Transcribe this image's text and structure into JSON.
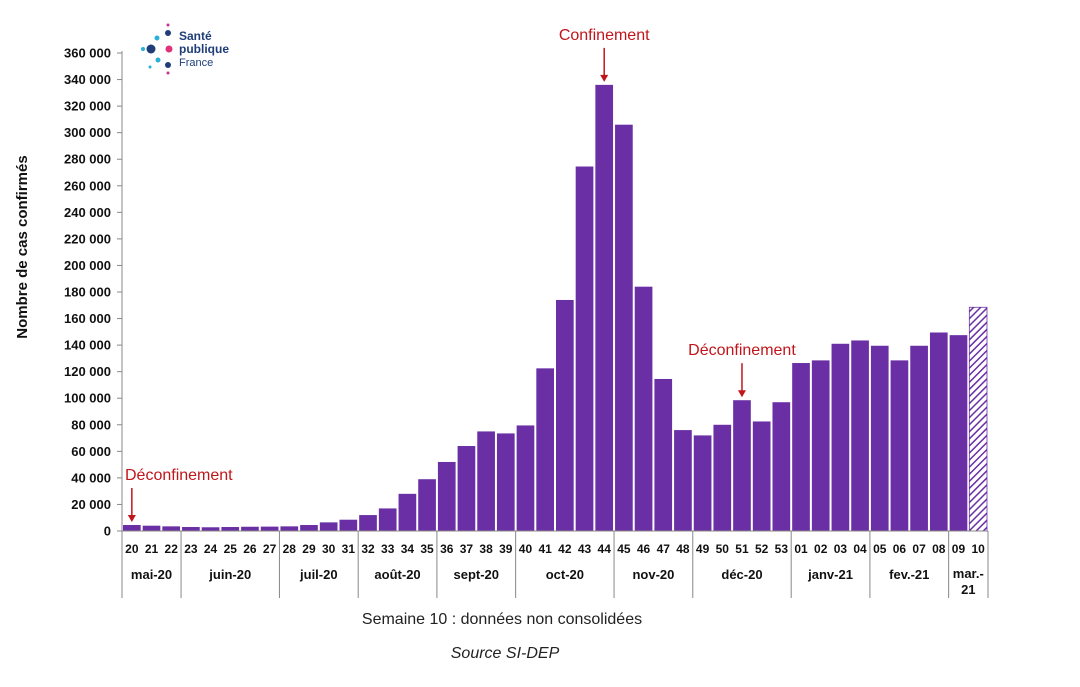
{
  "logo": {
    "line1": "Santé",
    "line2": "publique",
    "line3": "France"
  },
  "chart_data": {
    "type": "bar",
    "ylabel": "Nombre de cas confirmés",
    "ylim": [
      0,
      360000
    ],
    "yticks": [
      "0",
      "20 000",
      "40 000",
      "60 000",
      "80 000",
      "100 000",
      "120 000",
      "140 000",
      "160 000",
      "180 000",
      "200 000",
      "220 000",
      "240 000",
      "260 000",
      "280 000",
      "300 000",
      "320 000",
      "340 000",
      "360 000"
    ],
    "categories": [
      "20",
      "21",
      "22",
      "23",
      "24",
      "25",
      "26",
      "27",
      "28",
      "29",
      "30",
      "31",
      "32",
      "33",
      "34",
      "35",
      "36",
      "37",
      "38",
      "39",
      "40",
      "41",
      "42",
      "43",
      "44",
      "45",
      "46",
      "47",
      "48",
      "49",
      "50",
      "51",
      "52",
      "53",
      "01",
      "02",
      "03",
      "04",
      "05",
      "06",
      "07",
      "08",
      "09",
      "10"
    ],
    "values": [
      4500,
      4000,
      3500,
      3000,
      2800,
      3000,
      3200,
      3300,
      3500,
      4500,
      6500,
      8500,
      12000,
      17000,
      28000,
      39000,
      52000,
      64000,
      75000,
      73500,
      79500,
      122500,
      174000,
      274500,
      336000,
      306000,
      184000,
      114500,
      76000,
      72000,
      80000,
      98500,
      82500,
      97000,
      126500,
      128500,
      141000,
      143500,
      139500,
      128500,
      139500,
      149500,
      147500,
      168500
    ],
    "partial_last": true,
    "months": [
      {
        "label": "mai-20",
        "start": 0,
        "end": 2
      },
      {
        "label": "juin-20",
        "start": 3,
        "end": 7
      },
      {
        "label": "juil-20",
        "start": 8,
        "end": 11
      },
      {
        "label": "août-20",
        "start": 12,
        "end": 15
      },
      {
        "label": "sept-20",
        "start": 16,
        "end": 19
      },
      {
        "label": "oct-20",
        "start": 20,
        "end": 24
      },
      {
        "label": "nov-20",
        "start": 25,
        "end": 28
      },
      {
        "label": "déc-20",
        "start": 29,
        "end": 33
      },
      {
        "label": "janv-21",
        "start": 34,
        "end": 37
      },
      {
        "label": "fev.-21",
        "start": 38,
        "end": 41
      },
      {
        "label": "mar.-",
        "label2": "21",
        "start": 42,
        "end": 43
      }
    ],
    "annotations": [
      {
        "text": "Déconfinement",
        "week_index": 0
      },
      {
        "text": "Confinement",
        "week_index": 24
      },
      {
        "text": "Déconfinement",
        "week_index": 31
      }
    ],
    "colors": {
      "bar": "#6a2fa5",
      "annotation": "#c0161b"
    }
  },
  "footer": {
    "note": "Semaine 10 : données non consolidées",
    "source": "Source SI-DEP"
  }
}
